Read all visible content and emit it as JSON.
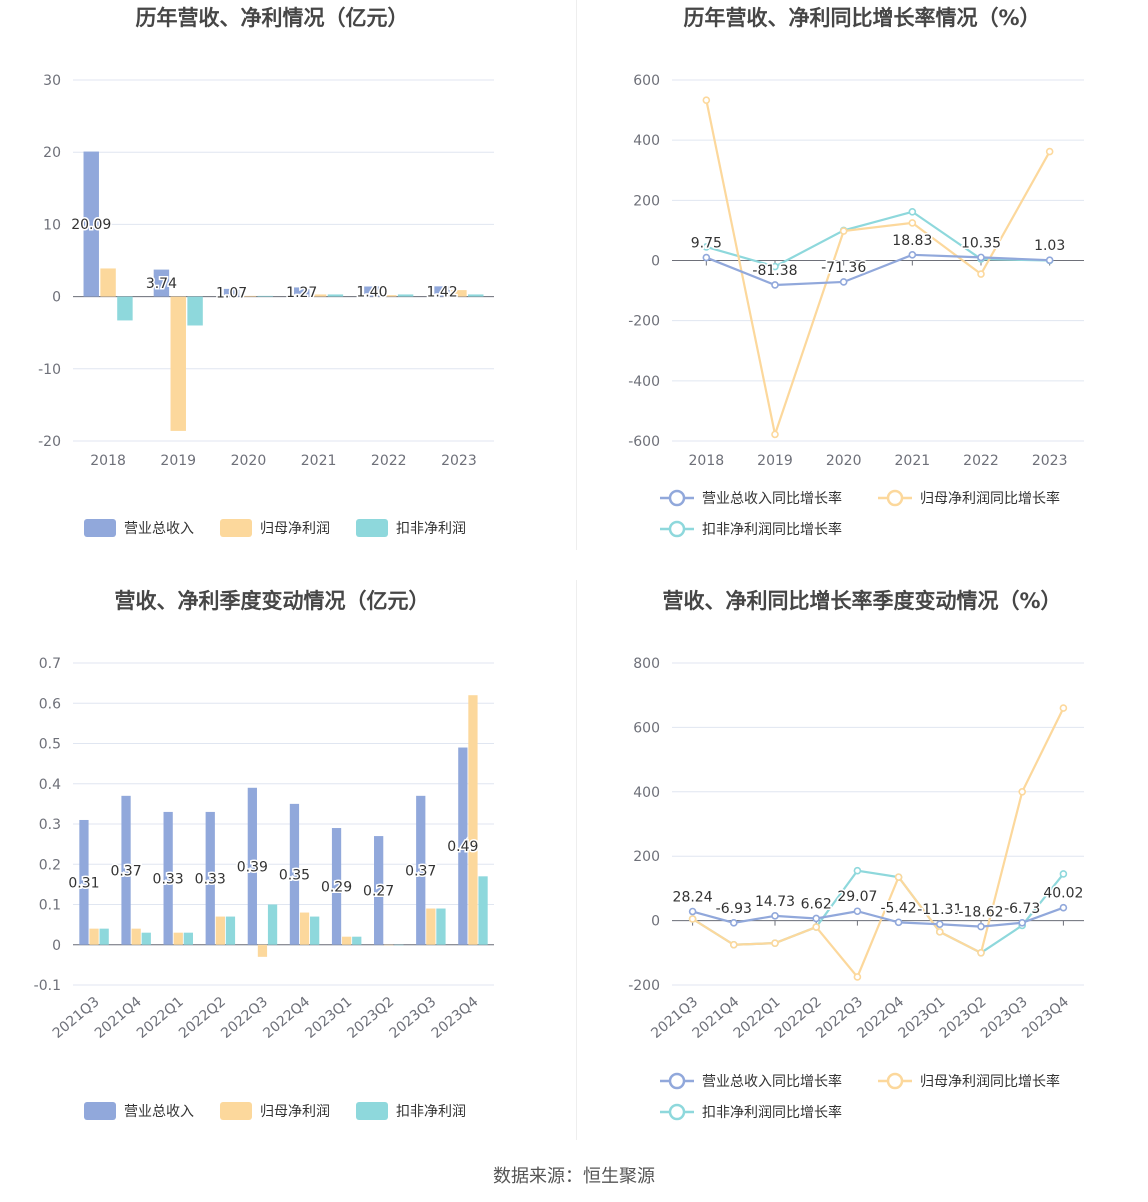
{
  "source": "数据来源：恒生聚源",
  "colors": {
    "revenue": "#91a8db",
    "net_profit": "#fcd89c",
    "deducted": "#8ed8dc"
  },
  "chart_data": [
    {
      "id": "annual-amounts",
      "type": "bar",
      "title": "历年营收、净利情况（亿元）",
      "categories": [
        "2018",
        "2019",
        "2020",
        "2021",
        "2022",
        "2023"
      ],
      "ylim": [
        -20,
        30
      ],
      "yticks": [
        -20,
        -10,
        0,
        10,
        20,
        30
      ],
      "grid": true,
      "legend_position": "bottom",
      "series": [
        {
          "name": "营业总收入",
          "values": [
            20.09,
            3.74,
            1.07,
            1.27,
            1.4,
            1.42
          ],
          "labels": [
            "20.09",
            "3.74",
            "1.07",
            "1.27",
            "1.40",
            "1.42"
          ]
        },
        {
          "name": "归母净利润",
          "values": [
            3.9,
            -18.6,
            0.1,
            0.3,
            0.2,
            0.9
          ]
        },
        {
          "name": "扣非净利润",
          "values": [
            -3.3,
            -4.0,
            0.1,
            0.3,
            0.3,
            0.3
          ]
        }
      ]
    },
    {
      "id": "annual-growth",
      "type": "line",
      "title": "历年营收、净利同比增长率情况（%）",
      "categories": [
        "2018",
        "2019",
        "2020",
        "2021",
        "2022",
        "2023"
      ],
      "ylim": [
        -600,
        600
      ],
      "yticks": [
        -600,
        -400,
        -200,
        0,
        200,
        400,
        600
      ],
      "grid": true,
      "legend_position": "bottom",
      "series": [
        {
          "name": "营业总收入同比增长率",
          "values": [
            9.75,
            -81.38,
            -71.36,
            18.83,
            10.35,
            1.03
          ],
          "labels": [
            "9.75",
            "-81.38",
            "-71.36",
            "18.83",
            "10.35",
            "1.03"
          ]
        },
        {
          "name": "归母净利润同比增长率",
          "values": [
            533,
            -578,
            98,
            125,
            -45,
            362
          ]
        },
        {
          "name": "扣非净利润同比增长率",
          "values": [
            45,
            -20,
            100,
            162,
            5,
            0
          ]
        }
      ]
    },
    {
      "id": "quarterly-amounts",
      "type": "bar",
      "title": "营收、净利季度变动情况（亿元）",
      "categories": [
        "2021Q3",
        "2021Q4",
        "2022Q1",
        "2022Q2",
        "2022Q3",
        "2022Q4",
        "2023Q1",
        "2023Q2",
        "2023Q3",
        "2023Q4"
      ],
      "ylim": [
        -0.1,
        0.7
      ],
      "yticks": [
        -0.1,
        0,
        0.1,
        0.2,
        0.3,
        0.4,
        0.5,
        0.6,
        0.7
      ],
      "grid": true,
      "legend_position": "bottom",
      "series": [
        {
          "name": "营业总收入",
          "values": [
            0.31,
            0.37,
            0.33,
            0.33,
            0.39,
            0.35,
            0.29,
            0.27,
            0.37,
            0.49
          ],
          "labels": [
            "0.31",
            "0.37",
            "0.33",
            "0.33",
            "0.39",
            "0.35",
            "0.29",
            "0.27",
            "0.37",
            "0.49"
          ]
        },
        {
          "name": "归母净利润",
          "values": [
            0.04,
            0.04,
            0.03,
            0.07,
            -0.03,
            0.08,
            0.02,
            0.0,
            0.09,
            0.62
          ]
        },
        {
          "name": "扣非净利润",
          "values": [
            0.04,
            0.03,
            0.03,
            0.07,
            0.1,
            0.07,
            0.02,
            0.0,
            0.09,
            0.17
          ]
        }
      ]
    },
    {
      "id": "quarterly-growth",
      "type": "line",
      "title": "营收、净利同比增长率季度变动情况（%）",
      "categories": [
        "2021Q3",
        "2021Q4",
        "2022Q1",
        "2022Q2",
        "2022Q3",
        "2022Q4",
        "2023Q1",
        "2023Q2",
        "2023Q3",
        "2023Q4"
      ],
      "ylim": [
        -200,
        800
      ],
      "yticks": [
        -200,
        0,
        200,
        400,
        600,
        800
      ],
      "grid": true,
      "legend_position": "bottom",
      "series": [
        {
          "name": "营业总收入同比增长率",
          "values": [
            28.24,
            -6.93,
            14.73,
            6.62,
            29.07,
            -5.42,
            -11.31,
            -18.62,
            -6.73,
            40.02
          ],
          "labels": [
            "28.24",
            "-6.93",
            "14.73",
            "6.62",
            "29.07",
            "-5.42",
            "-11.31",
            "-18.62",
            "-6.73",
            "40.02"
          ]
        },
        {
          "name": "归母净利润同比增长率",
          "values": [
            5,
            -75,
            -70,
            -20,
            -175,
            135,
            -35,
            -100,
            400,
            660
          ]
        },
        {
          "name": "扣非净利润同比增长率",
          "values": [
            5,
            -75,
            -70,
            -20,
            155,
            135,
            -35,
            -100,
            -15,
            145
          ]
        }
      ]
    }
  ]
}
